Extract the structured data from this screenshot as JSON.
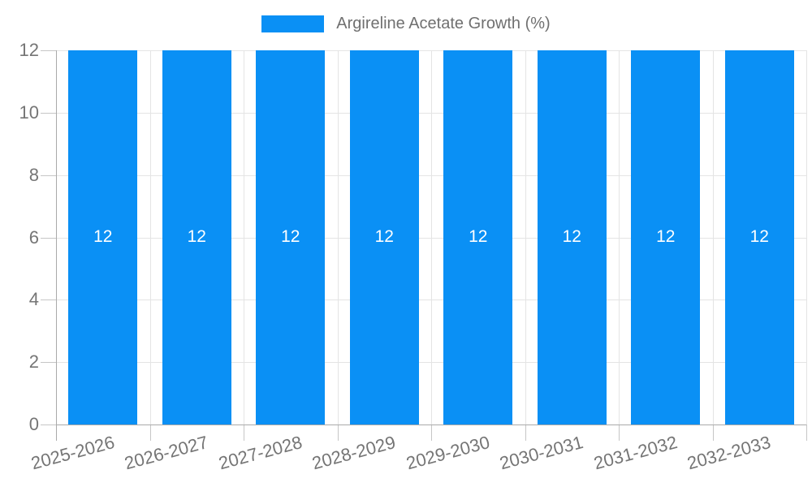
{
  "chart_data": {
    "type": "bar",
    "legend": "Argireline Acetate Growth (%)",
    "categories": [
      "2025-2026",
      "2026-2027",
      "2027-2028",
      "2028-2029",
      "2029-2030",
      "2030-2031",
      "2031-2032",
      "2032-2033"
    ],
    "values": [
      12,
      12,
      12,
      12,
      12,
      12,
      12,
      12
    ],
    "bar_labels": [
      "12",
      "12",
      "12",
      "12",
      "12",
      "12",
      "12",
      "12"
    ],
    "ylabel": "",
    "xlabel": "",
    "ylim": [
      0,
      12
    ],
    "yticks": [
      0,
      2,
      4,
      6,
      8,
      10,
      12
    ],
    "grid": true,
    "legend_position": "top-center",
    "colors": {
      "bar": "#0a90f5",
      "bar_label_text": "#ffffff",
      "axis_label_text": "#757575",
      "legend_text": "#707070",
      "gridline": "#e4e4e4",
      "tick": "#c6c6c6",
      "axis": "#aaaaaa"
    }
  }
}
